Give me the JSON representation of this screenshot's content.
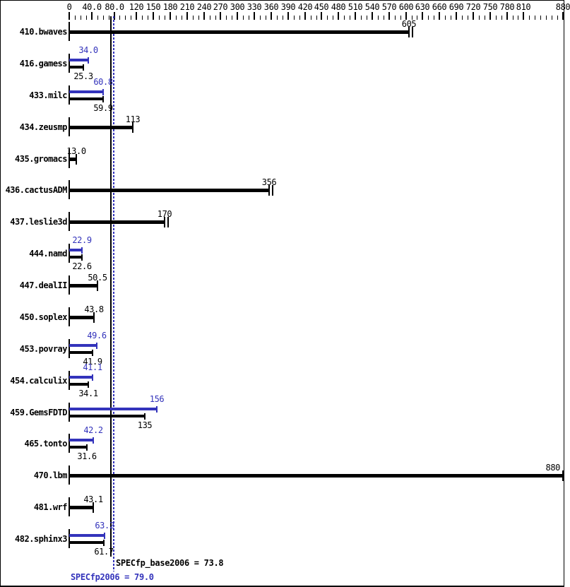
{
  "chart_data": {
    "type": "bar",
    "orientation": "horizontal",
    "title": "",
    "legend": "none",
    "grid": "off",
    "series_colors": {
      "base": "#000000",
      "peak": "#3333bb"
    },
    "x_axis": {
      "position": "top",
      "xlim": [
        0,
        880
      ],
      "minor_tick_step": 10,
      "ticks": [
        0,
        40,
        80,
        120,
        150,
        180,
        210,
        240,
        270,
        300,
        330,
        360,
        390,
        420,
        450,
        480,
        510,
        540,
        570,
        600,
        630,
        660,
        690,
        720,
        750,
        780,
        810,
        880
      ],
      "tick_labels": [
        "0",
        "40.0",
        "80.0",
        "120",
        "150",
        "180",
        "210",
        "240",
        "270",
        "300",
        "330",
        "360",
        "390",
        "420",
        "450",
        "480",
        "510",
        "540",
        "570",
        "600",
        "630",
        "660",
        "690",
        "720",
        "750",
        "780",
        "810",
        "880"
      ]
    },
    "benchmarks": [
      {
        "name": "410.bwaves",
        "base": 605,
        "base_label": "605",
        "peak": null,
        "peak_label": null,
        "double_end_tick": true
      },
      {
        "name": "416.gamess",
        "base": 25.3,
        "base_label": "25.3",
        "peak": 34.0,
        "peak_label": "34.0",
        "double_end_tick": false
      },
      {
        "name": "433.milc",
        "base": 59.9,
        "base_label": "59.9",
        "peak": 60.8,
        "peak_label": "60.8",
        "double_end_tick": false
      },
      {
        "name": "434.zeusmp",
        "base": 113,
        "base_label": "113",
        "peak": null,
        "peak_label": null,
        "double_end_tick": false
      },
      {
        "name": "435.gromacs",
        "base": 13.0,
        "base_label": "13.0",
        "peak": null,
        "peak_label": null,
        "double_end_tick": false
      },
      {
        "name": "436.cactusADM",
        "base": 356,
        "base_label": "356",
        "peak": null,
        "peak_label": null,
        "double_end_tick": true
      },
      {
        "name": "437.leslie3d",
        "base": 170,
        "base_label": "170",
        "peak": null,
        "peak_label": null,
        "double_end_tick": true
      },
      {
        "name": "444.namd",
        "base": 22.6,
        "base_label": "22.6",
        "peak": 22.9,
        "peak_label": "22.9",
        "double_end_tick": false
      },
      {
        "name": "447.dealII",
        "base": 50.5,
        "base_label": "50.5",
        "peak": null,
        "peak_label": null,
        "double_end_tick": false
      },
      {
        "name": "450.soplex",
        "base": 43.8,
        "base_label": "43.8",
        "peak": null,
        "peak_label": null,
        "double_end_tick": false
      },
      {
        "name": "453.povray",
        "base": 41.9,
        "base_label": "41.9",
        "peak": 49.6,
        "peak_label": "49.6",
        "double_end_tick": false
      },
      {
        "name": "454.calculix",
        "base": 34.1,
        "base_label": "34.1",
        "peak": 41.1,
        "peak_label": "41.1",
        "double_end_tick": false
      },
      {
        "name": "459.GemsFDTD",
        "base": 135,
        "base_label": "135",
        "peak": 156,
        "peak_label": "156",
        "double_end_tick": false
      },
      {
        "name": "465.tonto",
        "base": 31.6,
        "base_label": "31.6",
        "peak": 42.2,
        "peak_label": "42.2",
        "double_end_tick": false
      },
      {
        "name": "470.lbm",
        "base": 880,
        "base_label": "880",
        "peak": null,
        "peak_label": null,
        "double_end_tick": false
      },
      {
        "name": "481.wrf",
        "base": 43.1,
        "base_label": "43.1",
        "peak": null,
        "peak_label": null,
        "double_end_tick": false
      },
      {
        "name": "482.sphinx3",
        "base": 61.7,
        "base_label": "61.7",
        "peak": 63.2,
        "peak_label": "63.2",
        "double_end_tick": false
      }
    ],
    "reference_lines": [
      {
        "text": "SPECfp_base2006 = 73.8",
        "value": 73.8,
        "series": "base",
        "style": "solid"
      },
      {
        "text": "SPECfp2006 = 79.0",
        "value": 79.0,
        "series": "peak",
        "style": "dotted"
      }
    ]
  }
}
